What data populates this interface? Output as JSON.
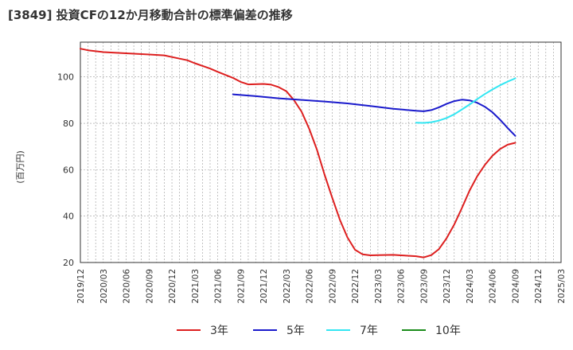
{
  "title": "[3849]  投資CFの12か月移動合計の標準偏差の推移",
  "chart_data": {
    "type": "line",
    "title": "[3849]  投資CFの12か月移動合計の標準偏差の推移",
    "xlabel": "",
    "ylabel": "(百万円)",
    "ylim": [
      20,
      115
    ],
    "yticks": [
      20,
      40,
      60,
      80,
      100
    ],
    "grid": true,
    "legend_position": "bottom",
    "x_ticks": [
      "2019/12",
      "2020/03",
      "2020/06",
      "2020/09",
      "2020/12",
      "2021/03",
      "2021/06",
      "2021/09",
      "2021/12",
      "2022/03",
      "2022/06",
      "2022/09",
      "2022/12",
      "2023/03",
      "2023/06",
      "2023/09",
      "2023/12",
      "2024/03",
      "2024/06",
      "2024/09",
      "2024/12",
      "2025/03"
    ],
    "series": [
      {
        "name": "3年",
        "color": "#dd1f1f",
        "x": [
          "2019/12",
          "2020/01",
          "2020/03",
          "2020/06",
          "2020/09",
          "2020/11",
          "2020/12",
          "2021/02",
          "2021/03",
          "2021/05",
          "2021/06",
          "2021/08",
          "2021/09",
          "2021/10",
          "2021/12",
          "2022/01",
          "2022/02",
          "2022/03",
          "2022/04",
          "2022/05",
          "2022/06",
          "2022/07",
          "2022/08",
          "2022/09",
          "2022/10",
          "2022/11",
          "2022/12",
          "2023/01",
          "2023/02",
          "2023/03",
          "2023/05",
          "2023/06",
          "2023/08",
          "2023/09",
          "2023/10",
          "2023/11",
          "2023/12",
          "2024/01",
          "2024/02",
          "2024/03",
          "2024/04",
          "2024/05",
          "2024/06",
          "2024/07",
          "2024/08",
          "2024/09"
        ],
        "values": [
          112.2,
          111.5,
          110.7,
          110.2,
          109.7,
          109.3,
          108.6,
          107.2,
          105.9,
          103.6,
          102.2,
          99.6,
          97.9,
          96.8,
          97.0,
          96.7,
          95.6,
          93.8,
          90.0,
          85.0,
          77.6,
          68.7,
          57.9,
          48.0,
          38.5,
          30.8,
          25.5,
          23.5,
          23.1,
          23.2,
          23.3,
          23.1,
          22.7,
          22.2,
          23.2,
          25.8,
          30.5,
          36.4,
          43.5,
          51.0,
          57.1,
          62.0,
          66.0,
          68.9,
          70.8,
          71.6
        ]
      },
      {
        "name": "5年",
        "color": "#1a1acc",
        "x": [
          "2021/08",
          "2021/11",
          "2022/02",
          "2022/05",
          "2022/08",
          "2022/11",
          "2023/02",
          "2023/05",
          "2023/08",
          "2023/09",
          "2023/10",
          "2023/11",
          "2023/12",
          "2024/01",
          "2024/02",
          "2024/03",
          "2024/04",
          "2024/05",
          "2024/06",
          "2024/07",
          "2024/08",
          "2024/09"
        ],
        "values": [
          92.5,
          91.7,
          90.8,
          90.1,
          89.4,
          88.6,
          87.5,
          86.3,
          85.4,
          85.2,
          85.7,
          86.9,
          88.4,
          89.6,
          90.2,
          89.9,
          88.9,
          87.2,
          84.8,
          81.6,
          78.0,
          74.6
        ]
      },
      {
        "name": "7年",
        "color": "#33e6f2",
        "x": [
          "2023/08",
          "2023/09",
          "2023/10",
          "2023/11",
          "2023/12",
          "2024/01",
          "2024/02",
          "2024/03",
          "2024/04",
          "2024/05",
          "2024/06",
          "2024/07",
          "2024/08",
          "2024/09"
        ],
        "values": [
          80.3,
          80.2,
          80.5,
          81.2,
          82.3,
          83.9,
          86.0,
          88.1,
          90.4,
          92.6,
          94.6,
          96.4,
          98.0,
          99.4
        ]
      },
      {
        "name": "10年",
        "color": "#1a8c1a",
        "x": [],
        "values": []
      }
    ]
  }
}
